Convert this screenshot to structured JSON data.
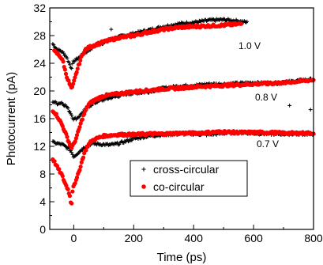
{
  "chart_data": {
    "type": "scatter",
    "xlabel": "Time (ps)",
    "ylabel": "Photocurrent (pA)",
    "xlim": [
      -80,
      800
    ],
    "ylim": [
      0,
      32
    ],
    "xticks": [
      0,
      200,
      400,
      600,
      800
    ],
    "yticks": [
      0,
      4,
      8,
      12,
      16,
      20,
      24,
      28,
      32
    ],
    "x_minor_step": 100,
    "y_minor_step": 2,
    "annotations": [
      "1.0 V",
      "0.8 V",
      "0.7 V"
    ],
    "legend": {
      "position": "lower-center"
    },
    "series": [
      {
        "name": "cross-circular",
        "marker": "plus",
        "color": "#000000",
        "groups": [
          {
            "voltage": "1.0 V",
            "x_range": [
              -70,
              580
            ],
            "points": [
              [
                -70,
                26.8
              ],
              [
                -55,
                26.0
              ],
              [
                -40,
                25.7
              ],
              [
                -25,
                25.0
              ],
              [
                -15,
                24.0
              ],
              [
                -8,
                23.3
              ],
              [
                0,
                24.3
              ],
              [
                10,
                24.6
              ],
              [
                20,
                24.9
              ],
              [
                30,
                25.3
              ],
              [
                50,
                25.9
              ],
              [
                70,
                26.5
              ],
              [
                100,
                27.0
              ],
              [
                150,
                27.8
              ],
              [
                200,
                28.3
              ],
              [
                250,
                28.8
              ],
              [
                300,
                29.3
              ],
              [
                350,
                29.7
              ],
              [
                400,
                29.9
              ],
              [
                450,
                30.2
              ],
              [
                500,
                30.3
              ],
              [
                550,
                30.1
              ],
              [
                580,
                29.9
              ]
            ]
          },
          {
            "voltage": "0.8 V",
            "x_range": [
              -70,
              800
            ],
            "points": [
              [
                -70,
                18.5
              ],
              [
                -55,
                18.2
              ],
              [
                -40,
                18.3
              ],
              [
                -25,
                17.8
              ],
              [
                -10,
                16.8
              ],
              [
                0,
                15.9
              ],
              [
                15,
                16.2
              ],
              [
                30,
                16.9
              ],
              [
                50,
                17.8
              ],
              [
                80,
                18.5
              ],
              [
                120,
                19.0
              ],
              [
                180,
                19.6
              ],
              [
                250,
                19.9
              ],
              [
                300,
                20.4
              ],
              [
                350,
                20.7
              ],
              [
                400,
                20.8
              ],
              [
                450,
                21.0
              ],
              [
                500,
                21.0
              ],
              [
                550,
                21.1
              ],
              [
                600,
                21.2
              ],
              [
                650,
                21.1
              ],
              [
                700,
                21.2
              ],
              [
                750,
                21.5
              ],
              [
                800,
                21.7
              ]
            ]
          },
          {
            "voltage": "0.7 V",
            "x_range": [
              -70,
              800
            ],
            "points": [
              [
                -70,
                12.6
              ],
              [
                -55,
                12.4
              ],
              [
                -40,
                12.3
              ],
              [
                -25,
                11.9
              ],
              [
                -10,
                11.4
              ],
              [
                0,
                10.5
              ],
              [
                20,
                11.3
              ],
              [
                40,
                12.0
              ],
              [
                60,
                12.4
              ],
              [
                90,
                12.3
              ],
              [
                120,
                12.2
              ],
              [
                150,
                12.4
              ],
              [
                200,
                13.1
              ],
              [
                250,
                13.5
              ],
              [
                300,
                13.7
              ],
              [
                350,
                13.8
              ],
              [
                400,
                13.8
              ],
              [
                450,
                13.7
              ],
              [
                500,
                13.9
              ],
              [
                550,
                14.0
              ],
              [
                600,
                13.9
              ],
              [
                650,
                13.8
              ],
              [
                700,
                13.8
              ],
              [
                750,
                13.8
              ],
              [
                800,
                13.8
              ]
            ]
          }
        ],
        "outliers": [
          [
            125,
            28.9
          ],
          [
            720,
            17.9
          ],
          [
            790,
            17.3
          ]
        ]
      },
      {
        "name": "co-circular",
        "marker": "circle",
        "color": "#ff0000",
        "groups": [
          {
            "voltage": "1.0 V",
            "x_range": [
              -65,
              560
            ],
            "points": [
              [
                -65,
                25.7
              ],
              [
                -55,
                25.4
              ],
              [
                -45,
                25.0
              ],
              [
                -35,
                24.2
              ],
              [
                -28,
                22.8
              ],
              [
                -20,
                21.7
              ],
              [
                -12,
                20.8
              ],
              [
                -6,
                20.3
              ],
              [
                0,
                21.2
              ],
              [
                10,
                22.8
              ],
              [
                20,
                24.2
              ],
              [
                30,
                25.4
              ],
              [
                40,
                26.0
              ],
              [
                60,
                26.5
              ],
              [
                80,
                26.8
              ],
              [
                100,
                27.1
              ],
              [
                150,
                27.7
              ],
              [
                200,
                28.0
              ],
              [
                250,
                28.5
              ],
              [
                300,
                28.9
              ],
              [
                350,
                29.2
              ],
              [
                400,
                29.3
              ],
              [
                450,
                29.4
              ],
              [
                500,
                29.5
              ],
              [
                560,
                29.7
              ]
            ]
          },
          {
            "voltage": "0.8 V",
            "x_range": [
              -70,
              800
            ],
            "points": [
              [
                -70,
                17.2
              ],
              [
                -60,
                16.7
              ],
              [
                -50,
                16.0
              ],
              [
                -40,
                15.2
              ],
              [
                -30,
                14.2
              ],
              [
                -22,
                13.3
              ],
              [
                -15,
                12.5
              ],
              [
                -8,
                11.8
              ],
              [
                0,
                12.3
              ],
              [
                10,
                13.4
              ],
              [
                20,
                14.8
              ],
              [
                30,
                16.2
              ],
              [
                40,
                17.2
              ],
              [
                50,
                18.1
              ],
              [
                70,
                18.7
              ],
              [
                100,
                19.3
              ],
              [
                150,
                19.6
              ],
              [
                200,
                19.9
              ],
              [
                250,
                20.1
              ],
              [
                300,
                20.3
              ],
              [
                350,
                20.4
              ],
              [
                400,
                20.6
              ],
              [
                450,
                20.7
              ],
              [
                500,
                20.8
              ],
              [
                550,
                20.9
              ],
              [
                600,
                21.0
              ],
              [
                650,
                21.1
              ],
              [
                700,
                21.2
              ],
              [
                750,
                21.4
              ],
              [
                800,
                21.6
              ]
            ]
          },
          {
            "voltage": "0.7 V",
            "x_range": [
              -70,
              800
            ],
            "points": [
              [
                -70,
                10.2
              ],
              [
                -60,
                9.4
              ],
              [
                -50,
                8.6
              ],
              [
                -40,
                7.9
              ],
              [
                -32,
                7.0
              ],
              [
                -25,
                6.3
              ],
              [
                -18,
                5.7
              ],
              [
                -12,
                4.6
              ],
              [
                -8,
                3.3
              ],
              [
                -4,
                5.6
              ],
              [
                0,
                6.5
              ],
              [
                8,
                7.0
              ],
              [
                15,
                8.0
              ],
              [
                25,
                9.5
              ],
              [
                35,
                11.0
              ],
              [
                45,
                12.0
              ],
              [
                60,
                12.8
              ],
              [
                80,
                13.2
              ],
              [
                100,
                13.5
              ],
              [
                150,
                13.7
              ],
              [
                200,
                13.7
              ],
              [
                250,
                13.8
              ],
              [
                300,
                13.8
              ],
              [
                350,
                13.9
              ],
              [
                400,
                13.9
              ],
              [
                450,
                14.0
              ],
              [
                500,
                14.1
              ],
              [
                550,
                14.0
              ],
              [
                600,
                14.0
              ],
              [
                650,
                14.0
              ],
              [
                700,
                13.9
              ],
              [
                750,
                13.9
              ],
              [
                800,
                13.9
              ]
            ]
          }
        ],
        "outliers": []
      }
    ]
  }
}
